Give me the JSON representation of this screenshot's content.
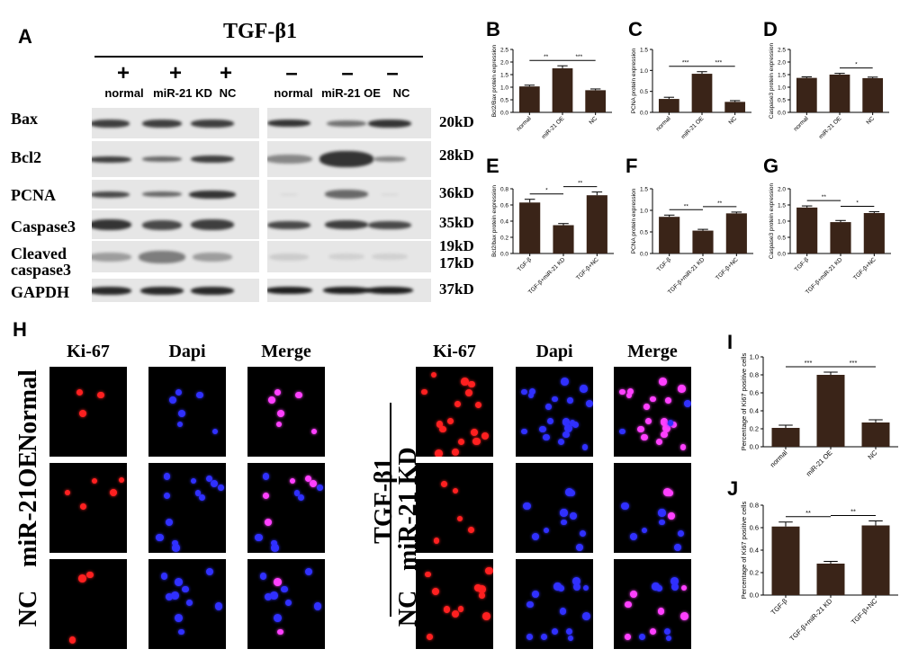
{
  "panel_letters": {
    "A": "A",
    "B": "B",
    "C": "C",
    "D": "D",
    "E": "E",
    "F": "F",
    "G": "G",
    "H": "H",
    "I": "I",
    "J": "J"
  },
  "western_blot": {
    "treatment": "TGF-β1",
    "left_group": {
      "signs": [
        "+",
        "+",
        "+"
      ],
      "columns": [
        "normal",
        "miR-21 KD",
        "NC"
      ]
    },
    "right_group": {
      "signs": [
        "–",
        "–",
        "–"
      ],
      "columns": [
        "normal",
        "miR-21 OE",
        "NC"
      ]
    },
    "proteins": [
      "Bax",
      "Bcl2",
      "PCNA",
      "Caspase3",
      "Cleaved caspase3",
      "GAPDH"
    ],
    "weights": [
      "20kD",
      "28kD",
      "36kD",
      "35kD",
      "19kD",
      "17kD",
      "37kD"
    ]
  },
  "immunofluorescence": {
    "channels": [
      "Ki-67",
      "Dapi",
      "Merge"
    ],
    "left_rows": [
      "Normal",
      "miR-21OE",
      "NC"
    ],
    "right_group_label": "TGF-β1",
    "right_rows": [
      "miR-21 KD",
      "NC"
    ]
  },
  "colors": {
    "bar": "#3a2418",
    "band": "#222222",
    "red_cell": "#ff2020",
    "blue_cell": "#3030ff",
    "merge_cell": "#ff40ff"
  },
  "chart_data": [
    {
      "id": "B",
      "type": "bar",
      "ylabel": "Bcl2/Bax protein expression",
      "categories": [
        "normal",
        "miR-21 OE",
        "NC"
      ],
      "values": [
        1.03,
        1.75,
        0.88
      ],
      "errors": [
        0.05,
        0.1,
        0.05
      ],
      "ylim": [
        0,
        2.5
      ],
      "yticks": [
        "0.0",
        "0.5",
        "1.0",
        "1.5",
        "2.0",
        "2.5"
      ],
      "significance": [
        {
          "from": 0,
          "to": 1,
          "label": "**"
        },
        {
          "from": 1,
          "to": 2,
          "label": "***"
        }
      ]
    },
    {
      "id": "C",
      "type": "bar",
      "ylabel": "PCNA protein expression",
      "categories": [
        "normal",
        "miR-21 OE",
        "NC"
      ],
      "values": [
        0.32,
        0.92,
        0.25
      ],
      "errors": [
        0.04,
        0.05,
        0.03
      ],
      "ylim": [
        0,
        1.5
      ],
      "yticks": [
        "0.0",
        "0.5",
        "1.0",
        "1.5"
      ],
      "significance": [
        {
          "from": 0,
          "to": 1,
          "label": "***"
        },
        {
          "from": 1,
          "to": 2,
          "label": "***"
        }
      ]
    },
    {
      "id": "D",
      "type": "bar",
      "ylabel": "Caspase3 protein expression",
      "categories": [
        "normal",
        "miR-21 OE",
        "NC"
      ],
      "values": [
        1.37,
        1.5,
        1.36
      ],
      "errors": [
        0.04,
        0.05,
        0.04
      ],
      "ylim": [
        0,
        2.5
      ],
      "yticks": [
        "0.0",
        "0.5",
        "1.0",
        "1.5",
        "2.0",
        "2.5"
      ],
      "significance": [
        {
          "from": 1,
          "to": 2,
          "label": "*"
        }
      ]
    },
    {
      "id": "E",
      "type": "bar",
      "ylabel": "Bcl2/bax protein expression",
      "categories": [
        "TGF-β",
        "TGF-β+miR-21 KD",
        "TGF-β+NC"
      ],
      "values": [
        0.63,
        0.35,
        0.72
      ],
      "errors": [
        0.04,
        0.02,
        0.04
      ],
      "ylim": [
        0,
        0.8
      ],
      "yticks": [
        "0.0",
        "0.2",
        "0.4",
        "0.6",
        "0.8"
      ],
      "significance": [
        {
          "from": 0,
          "to": 1,
          "label": "*"
        },
        {
          "from": 1,
          "to": 2,
          "label": "**"
        }
      ]
    },
    {
      "id": "F",
      "type": "bar",
      "ylabel": "PCNA protein expression",
      "categories": [
        "TGF-β",
        "TGF-β+miR-21 KD",
        "TGF-β+NC"
      ],
      "values": [
        0.85,
        0.53,
        0.93
      ],
      "errors": [
        0.04,
        0.03,
        0.03
      ],
      "ylim": [
        0,
        1.5
      ],
      "yticks": [
        "0.0",
        "0.5",
        "1.0",
        "1.5"
      ],
      "significance": [
        {
          "from": 0,
          "to": 1,
          "label": "**"
        },
        {
          "from": 1,
          "to": 2,
          "label": "**"
        }
      ]
    },
    {
      "id": "G",
      "type": "bar",
      "ylabel": "Caspase3 protein expression",
      "categories": [
        "TGF-β",
        "TGF-β+miR-21 KD",
        "TGF-β+NC"
      ],
      "values": [
        1.42,
        0.97,
        1.25
      ],
      "errors": [
        0.05,
        0.05,
        0.04
      ],
      "ylim": [
        0,
        2.0
      ],
      "yticks": [
        "0.0",
        "0.5",
        "1.0",
        "1.5",
        "2.0"
      ],
      "significance": [
        {
          "from": 0,
          "to": 1,
          "label": "**"
        },
        {
          "from": 1,
          "to": 2,
          "label": "*"
        }
      ]
    },
    {
      "id": "I",
      "type": "bar",
      "ylabel": "Percentage of Ki67 positive cells",
      "categories": [
        "normal",
        "miR-21 OE",
        "NC"
      ],
      "values": [
        0.21,
        0.8,
        0.27
      ],
      "errors": [
        0.03,
        0.03,
        0.03
      ],
      "ylim": [
        0,
        1.0
      ],
      "yticks": [
        "0.0",
        "0.2",
        "0.4",
        "0.6",
        "0.8",
        "1.0"
      ],
      "significance": [
        {
          "from": 0,
          "to": 1,
          "label": "***"
        },
        {
          "from": 1,
          "to": 2,
          "label": "***"
        }
      ]
    },
    {
      "id": "J",
      "type": "bar",
      "ylabel": "Percentage of Ki67 positive cells",
      "categories": [
        "TGF-β",
        "TGF-β+miR-21 KD",
        "TGF-β+NC"
      ],
      "values": [
        0.61,
        0.28,
        0.62
      ],
      "errors": [
        0.04,
        0.02,
        0.04
      ],
      "ylim": [
        0,
        0.8
      ],
      "yticks": [
        "0.0",
        "0.2",
        "0.4",
        "0.6",
        "0.8"
      ],
      "significance": [
        {
          "from": 0,
          "to": 1,
          "label": "**"
        },
        {
          "from": 1,
          "to": 2,
          "label": "**"
        }
      ]
    }
  ]
}
